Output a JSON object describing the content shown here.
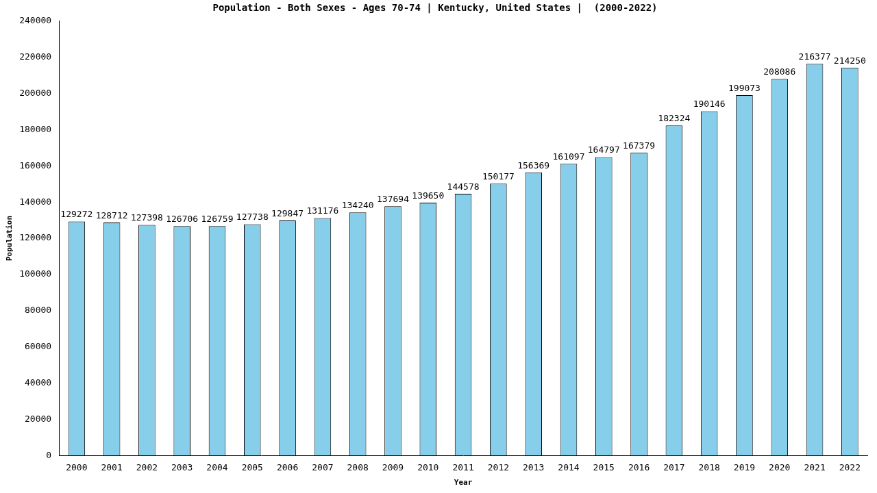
{
  "chart_data": {
    "type": "bar",
    "title": "Population - Both Sexes - Ages 70-74 | Kentucky, United States |  (2000-2022)",
    "x_label": "Year",
    "y_label": "Population",
    "categories": [
      "2000",
      "2001",
      "2002",
      "2003",
      "2004",
      "2005",
      "2006",
      "2007",
      "2008",
      "2009",
      "2010",
      "2011",
      "2012",
      "2013",
      "2014",
      "2015",
      "2016",
      "2017",
      "2018",
      "2019",
      "2020",
      "2021",
      "2022"
    ],
    "values": [
      129272,
      128712,
      127398,
      126706,
      126759,
      127738,
      129847,
      131176,
      134240,
      137694,
      139650,
      144578,
      150177,
      156369,
      161097,
      164797,
      167379,
      182324,
      190146,
      199073,
      208086,
      216377,
      214250
    ],
    "color": "#87ceeb",
    "ylim": [
      0,
      240000
    ],
    "yticks": [
      0,
      20000,
      40000,
      60000,
      80000,
      100000,
      120000,
      140000,
      160000,
      180000,
      200000,
      220000,
      240000
    ],
    "grid": false,
    "data_labels": true
  }
}
